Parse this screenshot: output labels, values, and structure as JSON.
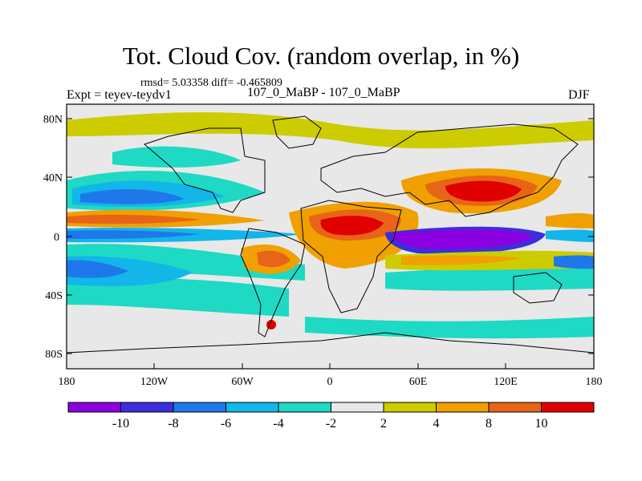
{
  "title": "Tot. Cloud Cov. (random overlap, in %)",
  "stats_line": "rmsd= 5.03358 diff= -0.465809",
  "left_label": "Expt = teyev-teydv1",
  "center_label": "107_0_MaBP - 107_0_MaBP",
  "right_label": "DJF",
  "y_ticks": [
    "80N",
    "40N",
    "0",
    "40S",
    "80S"
  ],
  "x_ticks": [
    "180",
    "120W",
    "60W",
    "0",
    "60E",
    "120E",
    "180"
  ],
  "colorbar": {
    "labels": [
      "-10",
      "-8",
      "-6",
      "-4",
      "-2",
      "2",
      "4",
      "8",
      "10"
    ],
    "colors": [
      "#8b00e0",
      "#3c2edc",
      "#1e78ea",
      "#12b6e8",
      "#1ed9c4",
      "#e8e8e8",
      "#cccc00",
      "#f0a000",
      "#e86418",
      "#e00000"
    ]
  },
  "map": {
    "background": "#e8e8e8",
    "region": "global lat-lon, 90S–90N, 180–180"
  }
}
